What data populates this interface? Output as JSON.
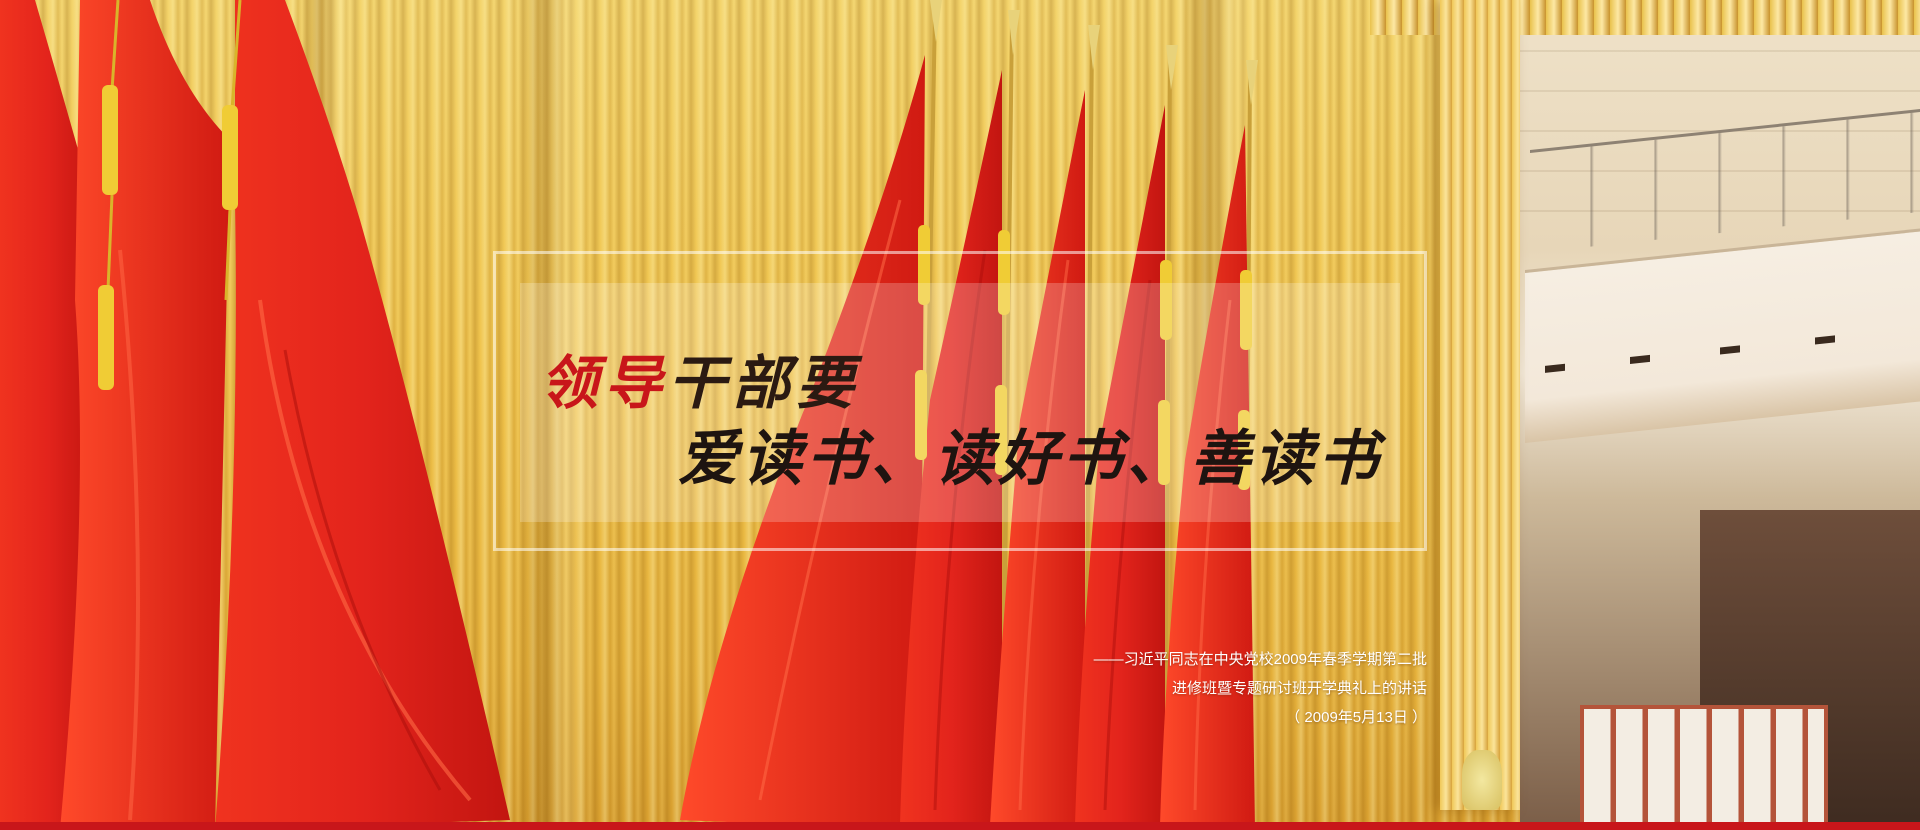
{
  "banner": {
    "title_line1_part1": "领导",
    "title_line1_part2": "干部要",
    "title_line2": "爱读书、读好书、善读书",
    "caption_line1": "——习近平同志在中央党校2009年春季学期第二批",
    "caption_line2": "进修班暨专题研讨班开学典礼上的讲话",
    "caption_line3": "（ 2009年5月13日 ）"
  },
  "colors": {
    "flag_red": "#e3241c",
    "curtain_gold": "#efc24a",
    "title_red": "#c8161a",
    "title_dark": "#1e1410",
    "caption_white": "#ffffff"
  }
}
